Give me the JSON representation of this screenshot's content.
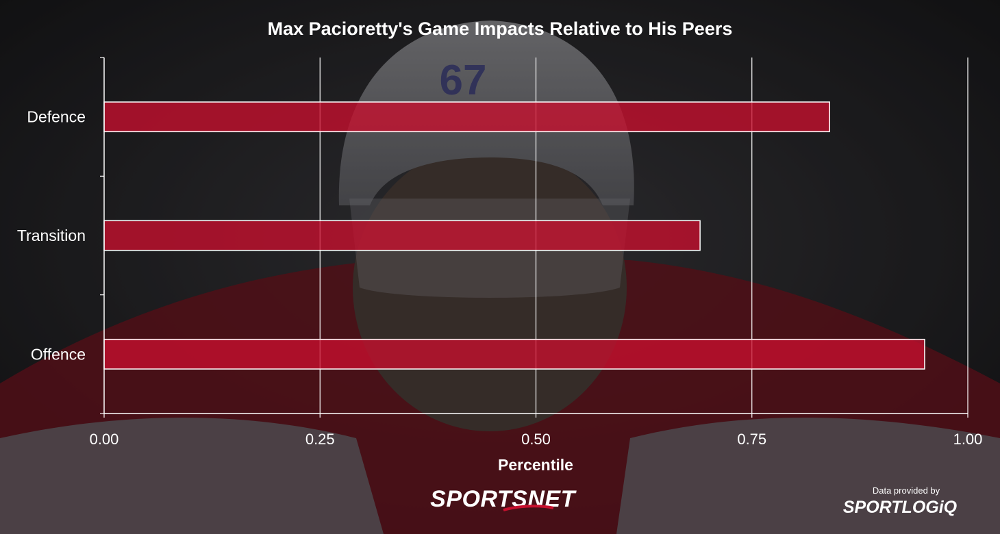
{
  "chart_data": {
    "type": "bar",
    "orientation": "horizontal",
    "title": "Max Pacioretty's Game Impacts Relative to His Peers",
    "xlabel": "Percentile",
    "ylabel": "",
    "categories": [
      "Defence",
      "Transition",
      "Offence"
    ],
    "values": [
      0.84,
      0.69,
      0.95
    ],
    "xlim": [
      0,
      1
    ],
    "xticks": [
      "0.00",
      "0.25",
      "0.50",
      "0.75",
      "1.00"
    ],
    "grid": true,
    "bar_color": "#c8102e"
  },
  "branding": {
    "logo_left": "SPORTSNET",
    "credit_line": "Data provided by",
    "logo_right": "SPORTLOGiQ"
  },
  "colors": {
    "background": "#2a2a2e",
    "jersey_red": "#9e1b2a",
    "bar_fill": "#c8102e",
    "bar_stroke": "#ffffff",
    "grid": "#ffffff",
    "text": "#ffffff"
  }
}
